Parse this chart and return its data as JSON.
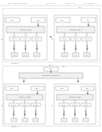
{
  "page_bg": "#ffffff",
  "box_fc": "#ffffff",
  "box_ec": "#999999",
  "lbl_fc": "#ffffff",
  "arrow_color": "#555555",
  "text_color": "#333333",
  "header_color": "#777777",
  "fig_label_color": "#555555",
  "outer_ec": "#aaaaaa",
  "inner_ec": "#999999",
  "icon_ec": "#777777"
}
